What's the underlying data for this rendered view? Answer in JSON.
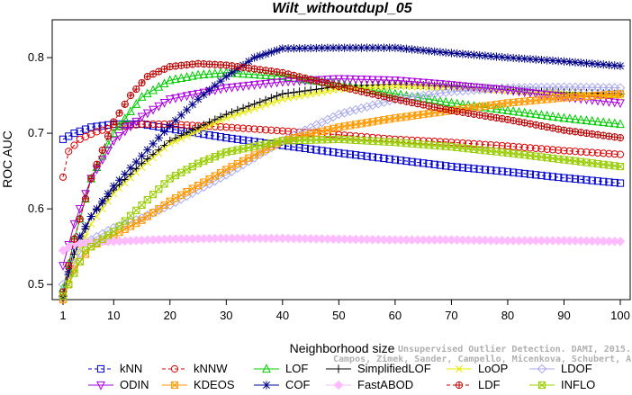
{
  "chart_data": {
    "type": "line",
    "title": "Wilt_withoutdupl_05",
    "xlabel": "Neighborhood size",
    "ylabel": "ROC AUC",
    "xlim": [
      1,
      100
    ],
    "ylim": [
      0.48,
      0.85
    ],
    "xticks": [
      1,
      10,
      20,
      30,
      40,
      50,
      60,
      70,
      80,
      90,
      100
    ],
    "yticks": [
      0.5,
      0.6,
      0.7,
      0.8
    ],
    "grid": false,
    "legend_position": "bottom",
    "credit_lines": [
      "Unsupervised Outlier Detection. DAMI, 2015.",
      "Campos, Zimek, Sander, Campello, Micenkova, Schubert, Assent, Houle"
    ],
    "series": [
      {
        "name": "kNN",
        "color": "#0000cc",
        "marker": "square",
        "dashed": true,
        "points": [
          [
            1,
            0.692
          ],
          [
            3,
            0.7
          ],
          [
            6,
            0.708
          ],
          [
            10,
            0.712
          ],
          [
            15,
            0.712
          ],
          [
            20,
            0.706
          ],
          [
            30,
            0.694
          ],
          [
            40,
            0.684
          ],
          [
            50,
            0.674
          ],
          [
            60,
            0.665
          ],
          [
            70,
            0.656
          ],
          [
            80,
            0.649
          ],
          [
            90,
            0.641
          ],
          [
            100,
            0.634
          ]
        ]
      },
      {
        "name": "kNNW",
        "color": "#dd0000",
        "marker": "circle",
        "dashed": true,
        "points": [
          [
            1,
            0.642
          ],
          [
            2,
            0.676
          ],
          [
            4,
            0.692
          ],
          [
            7,
            0.702
          ],
          [
            10,
            0.708
          ],
          [
            15,
            0.712
          ],
          [
            20,
            0.712
          ],
          [
            30,
            0.708
          ],
          [
            40,
            0.703
          ],
          [
            50,
            0.698
          ],
          [
            60,
            0.692
          ],
          [
            70,
            0.688
          ],
          [
            80,
            0.683
          ],
          [
            90,
            0.677
          ],
          [
            100,
            0.672
          ]
        ]
      },
      {
        "name": "LOF",
        "color": "#00cc00",
        "marker": "triangle",
        "dashed": false,
        "points": [
          [
            1,
            0.495
          ],
          [
            3,
            0.56
          ],
          [
            6,
            0.64
          ],
          [
            10,
            0.7
          ],
          [
            15,
            0.748
          ],
          [
            20,
            0.77
          ],
          [
            25,
            0.777
          ],
          [
            30,
            0.78
          ],
          [
            40,
            0.775
          ],
          [
            50,
            0.765
          ],
          [
            60,
            0.752
          ],
          [
            70,
            0.74
          ],
          [
            80,
            0.73
          ],
          [
            90,
            0.72
          ],
          [
            100,
            0.712
          ]
        ]
      },
      {
        "name": "SimplifiedLOF",
        "color": "#000000",
        "marker": "plus",
        "dashed": false,
        "points": [
          [
            1,
            0.485
          ],
          [
            3,
            0.54
          ],
          [
            6,
            0.59
          ],
          [
            10,
            0.625
          ],
          [
            15,
            0.66
          ],
          [
            20,
            0.69
          ],
          [
            30,
            0.725
          ],
          [
            40,
            0.752
          ],
          [
            50,
            0.762
          ],
          [
            60,
            0.765
          ],
          [
            70,
            0.762
          ],
          [
            80,
            0.758
          ],
          [
            90,
            0.754
          ],
          [
            100,
            0.752
          ]
        ]
      },
      {
        "name": "LoOP",
        "color": "#e8e800",
        "marker": "x",
        "dashed": false,
        "points": [
          [
            1,
            0.483
          ],
          [
            3,
            0.53
          ],
          [
            6,
            0.58
          ],
          [
            10,
            0.62
          ],
          [
            15,
            0.655
          ],
          [
            20,
            0.686
          ],
          [
            30,
            0.72
          ],
          [
            40,
            0.745
          ],
          [
            50,
            0.758
          ],
          [
            60,
            0.762
          ],
          [
            70,
            0.76
          ],
          [
            80,
            0.756
          ],
          [
            90,
            0.752
          ],
          [
            100,
            0.748
          ]
        ]
      },
      {
        "name": "LDOF",
        "color": "#aaaaee",
        "marker": "diamond",
        "dashed": false,
        "points": [
          [
            1,
            0.5
          ],
          [
            5,
            0.555
          ],
          [
            10,
            0.575
          ],
          [
            15,
            0.588
          ],
          [
            20,
            0.605
          ],
          [
            30,
            0.645
          ],
          [
            40,
            0.69
          ],
          [
            50,
            0.725
          ],
          [
            60,
            0.745
          ],
          [
            70,
            0.755
          ],
          [
            80,
            0.76
          ],
          [
            90,
            0.761
          ],
          [
            100,
            0.76
          ]
        ]
      },
      {
        "name": "ODIN",
        "color": "#aa00dd",
        "marker": "triangle-down",
        "dashed": false,
        "points": [
          [
            1,
            0.525
          ],
          [
            3,
            0.58
          ],
          [
            6,
            0.64
          ],
          [
            10,
            0.69
          ],
          [
            15,
            0.722
          ],
          [
            20,
            0.745
          ],
          [
            30,
            0.76
          ],
          [
            40,
            0.768
          ],
          [
            50,
            0.772
          ],
          [
            60,
            0.77
          ],
          [
            70,
            0.764
          ],
          [
            80,
            0.757
          ],
          [
            90,
            0.748
          ],
          [
            100,
            0.74
          ]
        ]
      },
      {
        "name": "KDEOS",
        "color": "#ff9900",
        "marker": "square-x",
        "dashed": false,
        "points": [
          [
            1,
            0.48
          ],
          [
            3,
            0.52
          ],
          [
            6,
            0.55
          ],
          [
            10,
            0.565
          ],
          [
            15,
            0.585
          ],
          [
            20,
            0.61
          ],
          [
            30,
            0.652
          ],
          [
            40,
            0.69
          ],
          [
            50,
            0.708
          ],
          [
            60,
            0.72
          ],
          [
            70,
            0.73
          ],
          [
            80,
            0.74
          ],
          [
            90,
            0.747
          ],
          [
            100,
            0.752
          ]
        ]
      },
      {
        "name": "COF",
        "color": "#000088",
        "marker": "asterisk",
        "dashed": false,
        "points": [
          [
            1,
            0.484
          ],
          [
            3,
            0.55
          ],
          [
            6,
            0.59
          ],
          [
            10,
            0.63
          ],
          [
            15,
            0.67
          ],
          [
            20,
            0.71
          ],
          [
            25,
            0.745
          ],
          [
            30,
            0.775
          ],
          [
            35,
            0.8
          ],
          [
            40,
            0.812
          ],
          [
            50,
            0.813
          ],
          [
            60,
            0.813
          ],
          [
            70,
            0.806
          ],
          [
            80,
            0.8
          ],
          [
            90,
            0.795
          ],
          [
            100,
            0.789
          ]
        ]
      },
      {
        "name": "FastABOD",
        "color": "#ffbbff",
        "marker": "diamond-filled",
        "dashed": false,
        "points": [
          [
            1,
            0.545
          ],
          [
            3,
            0.553
          ],
          [
            6,
            0.556
          ],
          [
            10,
            0.557
          ],
          [
            20,
            0.56
          ],
          [
            30,
            0.561
          ],
          [
            40,
            0.561
          ],
          [
            50,
            0.56
          ],
          [
            60,
            0.559
          ],
          [
            70,
            0.559
          ],
          [
            80,
            0.558
          ],
          [
            90,
            0.558
          ],
          [
            100,
            0.557
          ]
        ]
      },
      {
        "name": "LDF",
        "color": "#bb0000",
        "marker": "circle-plus",
        "dashed": true,
        "points": [
          [
            1,
            0.49
          ],
          [
            3,
            0.56
          ],
          [
            6,
            0.64
          ],
          [
            10,
            0.715
          ],
          [
            13,
            0.75
          ],
          [
            16,
            0.775
          ],
          [
            20,
            0.788
          ],
          [
            25,
            0.792
          ],
          [
            30,
            0.79
          ],
          [
            40,
            0.78
          ],
          [
            50,
            0.762
          ],
          [
            60,
            0.745
          ],
          [
            70,
            0.73
          ],
          [
            80,
            0.718
          ],
          [
            90,
            0.704
          ],
          [
            100,
            0.694
          ]
        ]
      },
      {
        "name": "INFLO",
        "color": "#99cc00",
        "marker": "square-x",
        "dashed": false,
        "points": [
          [
            1,
            0.485
          ],
          [
            5,
            0.545
          ],
          [
            10,
            0.57
          ],
          [
            15,
            0.605
          ],
          [
            20,
            0.64
          ],
          [
            25,
            0.66
          ],
          [
            30,
            0.675
          ],
          [
            40,
            0.69
          ],
          [
            50,
            0.692
          ],
          [
            60,
            0.688
          ],
          [
            70,
            0.682
          ],
          [
            80,
            0.674
          ],
          [
            90,
            0.665
          ],
          [
            100,
            0.656
          ]
        ]
      }
    ]
  }
}
